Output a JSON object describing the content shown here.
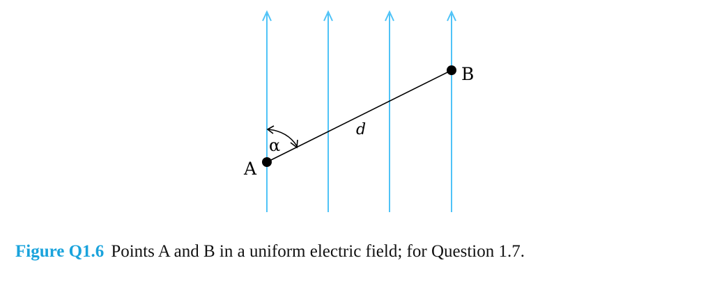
{
  "diagram": {
    "field_color": "#4fc3f7",
    "point_a_label": "A",
    "point_b_label": "B",
    "distance_label": "d",
    "angle_label": "α"
  },
  "caption": {
    "figure_label": "Figure Q1.6",
    "text": "Points A and B in a uniform electric field; for Question 1.7.",
    "label_color": "#1aa3dc"
  }
}
